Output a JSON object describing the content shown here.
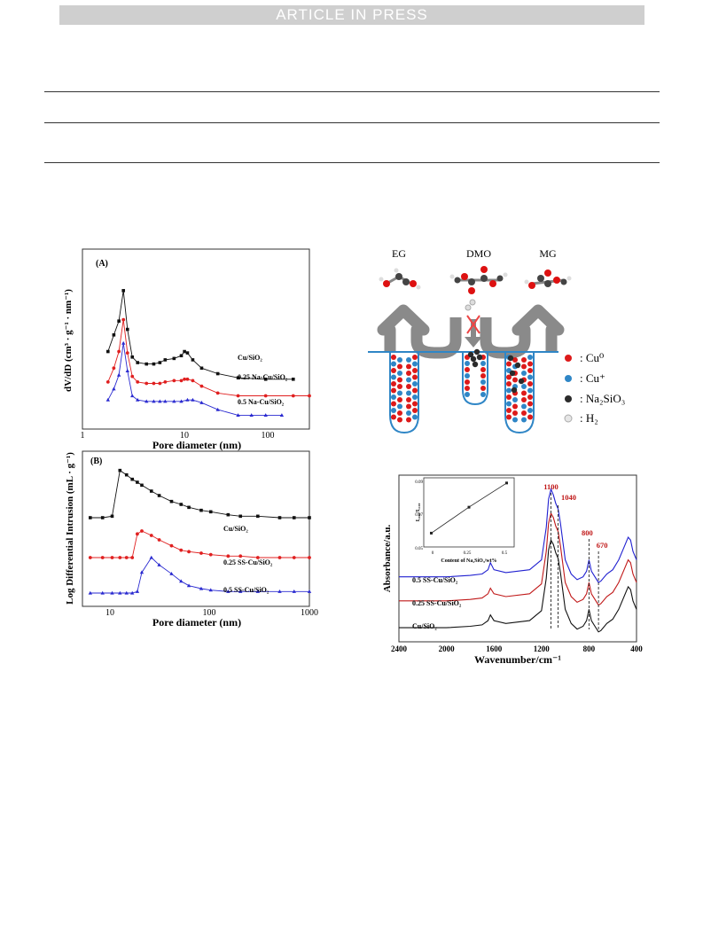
{
  "header": {
    "banner": "ARTICLE IN PRESS"
  },
  "figA": {
    "panel_label": "(A)",
    "xlabel": "Pore diameter  (nm)",
    "ylabel": "dV/dD (cm³ · g⁻¹ · nm⁻¹)",
    "xticks": [
      "1",
      "10",
      "100"
    ],
    "chart_data": {
      "type": "line",
      "xscale": "log",
      "xlim": [
        1,
        300
      ],
      "series": [
        {
          "name": "Cu/SiO₂",
          "color": "#111111",
          "marker": "square",
          "x": [
            1.9,
            2.2,
            2.5,
            2.8,
            3.1,
            3.5,
            4,
            5,
            6,
            7,
            8,
            10,
            12,
            13,
            14,
            16,
            20,
            30,
            50,
            100,
            200
          ],
          "y": [
            56,
            68,
            78,
            100,
            72,
            52,
            48,
            47,
            47,
            48,
            50,
            51,
            53,
            56,
            55,
            50,
            44,
            40,
            37,
            36,
            36
          ]
        },
        {
          "name": "0.25 Na-Cu/SiO₂",
          "color": "#e02020",
          "marker": "circle",
          "x": [
            1.9,
            2.2,
            2.5,
            2.8,
            3.1,
            3.5,
            4,
            5,
            6,
            7,
            8,
            10,
            12,
            13,
            14,
            16,
            20,
            30,
            50,
            100,
            200,
            300
          ],
          "y": [
            34,
            44,
            56,
            79,
            55,
            38,
            34,
            33,
            33,
            33,
            34,
            35,
            35,
            36,
            36,
            35,
            31,
            26,
            24,
            24,
            24,
            24
          ]
        },
        {
          "name": "0.5 Na-Cu/SiO₂",
          "color": "#2a2ad0",
          "marker": "triangle",
          "x": [
            1.9,
            2.2,
            2.5,
            2.8,
            3.1,
            3.5,
            4,
            5,
            6,
            7,
            8,
            10,
            12,
            14,
            16,
            20,
            30,
            50,
            70,
            100,
            150
          ],
          "y": [
            21,
            29,
            39,
            62,
            42,
            24,
            21,
            20,
            20,
            20,
            20,
            20,
            20,
            21,
            21,
            19,
            14,
            10,
            10,
            10,
            10
          ]
        }
      ]
    }
  },
  "figB": {
    "panel_label": "(B)",
    "xlabel": "Pore diameter (nm)",
    "ylabel": "Log Differential Intrusion (mL · g⁻¹)",
    "xticks": [
      "10",
      "100",
      "1000"
    ],
    "chart_data": {
      "type": "line",
      "xscale": "log",
      "xlim": [
        5,
        1000
      ],
      "series": [
        {
          "name": "Cu/SiO₂",
          "color": "#111111",
          "marker": "square",
          "x": [
            6,
            8,
            10,
            12,
            14,
            16,
            18,
            20,
            25,
            30,
            40,
            50,
            60,
            80,
            100,
            150,
            200,
            300,
            500,
            700,
            1000
          ],
          "y": [
            60,
            60,
            61,
            92,
            89,
            86,
            84,
            82,
            78,
            75,
            71,
            69,
            67,
            65,
            64,
            62,
            61,
            61,
            60,
            60,
            60
          ]
        },
        {
          "name": "0.25 SS-Cu/SiO₂",
          "color": "#e02020",
          "marker": "circle",
          "x": [
            6,
            8,
            10,
            12,
            14,
            16,
            18,
            20,
            25,
            30,
            40,
            50,
            60,
            80,
            100,
            150,
            200,
            300,
            500,
            700,
            1000
          ],
          "y": [
            33,
            33,
            33,
            33,
            33,
            33,
            49,
            51,
            48,
            45,
            41,
            38,
            37,
            36,
            35,
            34,
            34,
            33,
            33,
            33,
            33
          ]
        },
        {
          "name": "0.5 SS-Cu/SiO₂",
          "color": "#2a2ad0",
          "marker": "triangle",
          "x": [
            6,
            8,
            10,
            12,
            14,
            16,
            18,
            20,
            25,
            30,
            40,
            50,
            60,
            80,
            100,
            150,
            200,
            300,
            500,
            700,
            1000
          ],
          "y": [
            9,
            9,
            9,
            9,
            9,
            9,
            10,
            23,
            33,
            28,
            22,
            17,
            14,
            12,
            11,
            10,
            10,
            10,
            10,
            10,
            10
          ]
        }
      ]
    }
  },
  "schematic": {
    "labels": [
      "EG",
      "DMO",
      "MG"
    ],
    "legend": [
      {
        "label": ": Cu⁰",
        "color": "#dd1a1a"
      },
      {
        "label": ": Cu⁺",
        "color": "#2f86c6"
      },
      {
        "label": ": Na₂SiO₃",
        "color": "#2b2b2b"
      },
      {
        "label": ": H₂",
        "color": "#d9d9d9"
      }
    ]
  },
  "figIR": {
    "xlabel": "Wavenumber/cm⁻¹",
    "ylabel": "Absorbance/a.u.",
    "xticks": [
      "2400",
      "2000",
      "1600",
      "1200",
      "800",
      "400"
    ],
    "peaks": [
      {
        "label": "1100",
        "x": 1120
      },
      {
        "label": "1040",
        "x": 1060
      },
      {
        "label": "800",
        "x": 800
      },
      {
        "label": "670",
        "x": 720
      }
    ],
    "chart_data": {
      "type": "line",
      "xlim": [
        2400,
        400
      ],
      "reversed_x": true,
      "series": [
        {
          "name": "0.5 SS-Cu/SiO₂",
          "color": "#2020d0",
          "x": [
            2400,
            2000,
            1800,
            1700,
            1650,
            1630,
            1600,
            1500,
            1300,
            1200,
            1160,
            1140,
            1120,
            1100,
            1080,
            1060,
            1040,
            1000,
            950,
            900,
            850,
            820,
            800,
            780,
            750,
            720,
            700,
            650,
            600,
            550,
            500,
            470,
            450,
            430,
            400
          ],
          "y": [
            40,
            40,
            41,
            42,
            45,
            50,
            45,
            43,
            45,
            52,
            75,
            95,
            102,
            98,
            92,
            88,
            78,
            52,
            42,
            38,
            40,
            44,
            52,
            44,
            40,
            36,
            37,
            42,
            45,
            52,
            62,
            68,
            66,
            58,
            52
          ]
        },
        {
          "name": "0.25 SS-Cu/SiO₂",
          "color": "#c01818",
          "x": [
            2400,
            2000,
            1800,
            1700,
            1650,
            1630,
            1600,
            1500,
            1300,
            1200,
            1160,
            1140,
            1120,
            1100,
            1080,
            1060,
            1040,
            1000,
            950,
            900,
            850,
            820,
            800,
            780,
            750,
            720,
            700,
            650,
            600,
            550,
            500,
            470,
            450,
            430,
            400
          ],
          "y": [
            23,
            23,
            24,
            25,
            28,
            32,
            28,
            26,
            28,
            35,
            58,
            78,
            85,
            82,
            76,
            72,
            62,
            36,
            26,
            22,
            24,
            28,
            36,
            28,
            24,
            20,
            21,
            26,
            29,
            36,
            46,
            52,
            50,
            42,
            36
          ]
        },
        {
          "name": "Cu/SiO₂",
          "color": "#111111",
          "x": [
            2400,
            2000,
            1800,
            1700,
            1650,
            1630,
            1600,
            1500,
            1300,
            1200,
            1160,
            1140,
            1120,
            1100,
            1080,
            1060,
            1040,
            1000,
            950,
            900,
            850,
            820,
            800,
            780,
            750,
            720,
            700,
            650,
            600,
            550,
            500,
            470,
            450,
            430,
            400
          ],
          "y": [
            4,
            4,
            5,
            6,
            9,
            13,
            9,
            7,
            9,
            16,
            39,
            59,
            66,
            63,
            57,
            53,
            43,
            17,
            7,
            3,
            5,
            9,
            17,
            9,
            5,
            1,
            2,
            7,
            10,
            17,
            27,
            33,
            31,
            23,
            17
          ]
        }
      ]
    },
    "inset": {
      "xlabel": "Content of Na₂SiO₃/wt%",
      "ylabel": "I₁₀₄₀/I₁₁₀₀",
      "xticks": [
        "0",
        "0.25",
        "0.5"
      ],
      "yticks": [
        "0.05",
        "0.07",
        "0.09"
      ],
      "chart_data": {
        "type": "line",
        "x": [
          0,
          0.25,
          0.5
        ],
        "y": [
          0.058,
          0.073,
          0.087
        ],
        "xlim": [
          -0.05,
          0.55
        ],
        "ylim": [
          0.05,
          0.09
        ]
      }
    }
  }
}
